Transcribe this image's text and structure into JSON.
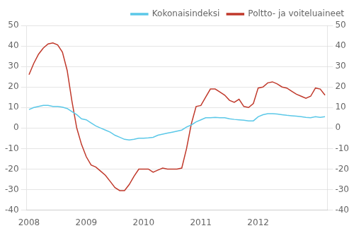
{
  "chart_data": {
    "type": "line",
    "categories": [
      "2008",
      null,
      null,
      null,
      null,
      null,
      null,
      null,
      null,
      null,
      null,
      null,
      "2009",
      null,
      null,
      null,
      null,
      null,
      null,
      null,
      null,
      null,
      null,
      null,
      "2010",
      null,
      null,
      null,
      null,
      null,
      null,
      null,
      null,
      null,
      null,
      null,
      "2011",
      null,
      null,
      null,
      null,
      null,
      null,
      null,
      null,
      null,
      null,
      null,
      "2012",
      null,
      null,
      null,
      null,
      null,
      null,
      null,
      null,
      null,
      null,
      null,
      null,
      null,
      null
    ],
    "series": [
      {
        "name": "Kokonaisindeksi",
        "color": "#5bc8e8",
        "values": [
          9.0,
          10.0,
          10.5,
          11.0,
          11.0,
          10.5,
          10.5,
          10.2,
          9.5,
          8.0,
          6.5,
          4.5,
          4.0,
          2.5,
          1.0,
          0.0,
          -1.0,
          -2.0,
          -3.5,
          -4.5,
          -5.5,
          -5.8,
          -5.5,
          -5.0,
          -5.0,
          -4.8,
          -4.5,
          -3.5,
          -3.0,
          -2.5,
          -2.0,
          -1.5,
          -1.0,
          0.5,
          1.5,
          3.0,
          4.0,
          5.0,
          5.0,
          5.2,
          5.0,
          5.0,
          4.5,
          4.2,
          4.0,
          3.8,
          3.5,
          3.5,
          5.5,
          6.5,
          7.0,
          7.0,
          6.8,
          6.5,
          6.2,
          6.0,
          5.8,
          5.5,
          5.2,
          5.0,
          5.5,
          5.2,
          5.5
        ]
      },
      {
        "name": "Poltto- ja voiteluaineet",
        "color": "#c0392b",
        "values": [
          26.0,
          31.5,
          36.0,
          39.0,
          41.0,
          41.5,
          40.5,
          37.0,
          28.0,
          13.0,
          0.0,
          -8.0,
          -14.0,
          -18.0,
          -19.0,
          -21.0,
          -23.0,
          -26.0,
          -29.0,
          -30.5,
          -30.5,
          -27.5,
          -23.5,
          -20.0,
          -20.0,
          -20.0,
          -21.5,
          -20.5,
          -19.5,
          -20.0,
          -20.0,
          -20.0,
          -19.5,
          -10.0,
          2.0,
          10.5,
          11.0,
          15.0,
          19.0,
          19.0,
          17.5,
          16.0,
          13.5,
          12.5,
          14.0,
          10.5,
          10.0,
          12.0,
          19.5,
          20.0,
          22.0,
          22.5,
          21.5,
          20.0,
          19.5,
          18.0,
          16.5,
          15.5,
          14.5,
          15.5,
          19.5,
          19.0,
          16.0
        ]
      }
    ],
    "ylim": [
      -40,
      50
    ],
    "yticks": [
      -40,
      -30,
      -20,
      -10,
      0,
      10,
      20,
      30,
      40,
      50
    ],
    "y2lim": [
      -40,
      50
    ],
    "y2ticks": [
      -40,
      -30,
      -20,
      -10,
      0,
      10,
      20,
      30,
      40,
      50
    ],
    "grid": "y",
    "legend": "upper right"
  }
}
